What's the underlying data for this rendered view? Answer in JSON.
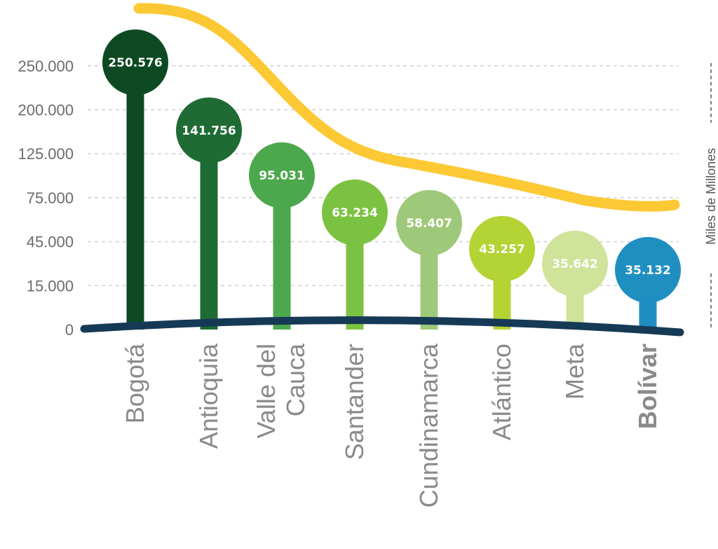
{
  "chart_data": {
    "type": "bar",
    "categories": [
      [
        "Bogotá"
      ],
      [
        "Antioquia"
      ],
      [
        "Valle del",
        "Cauca"
      ],
      [
        "Santander"
      ],
      [
        "Cundinamarca"
      ],
      [
        "Atlántico"
      ],
      [
        "Meta"
      ],
      [
        "Bolívar"
      ]
    ],
    "values": [
      250576,
      141756,
      95031,
      63234,
      58407,
      43257,
      35642,
      35132
    ],
    "value_labels": [
      "250.576",
      "141.756",
      "95.031",
      "63.234",
      "58.407",
      "43.257",
      "35.642",
      "35.132"
    ],
    "y_ticks": [
      "0",
      "15.000",
      "45.000",
      "75.000",
      "125.000",
      "200.000",
      "250.000"
    ],
    "ylabel": "Miles de Millones",
    "xlabel": "",
    "title": "",
    "grid": true,
    "highlighted_category": "Bolívar",
    "colors": [
      "#0d4a23",
      "#1f6b34",
      "#4ca84c",
      "#7cc242",
      "#9fc97a",
      "#b4d334",
      "#cfe39a",
      "#1f8fc2"
    ],
    "trend_color": "#fcc935",
    "baseline_color": "#163a55",
    "highlight_text_color": "#2789c0"
  }
}
